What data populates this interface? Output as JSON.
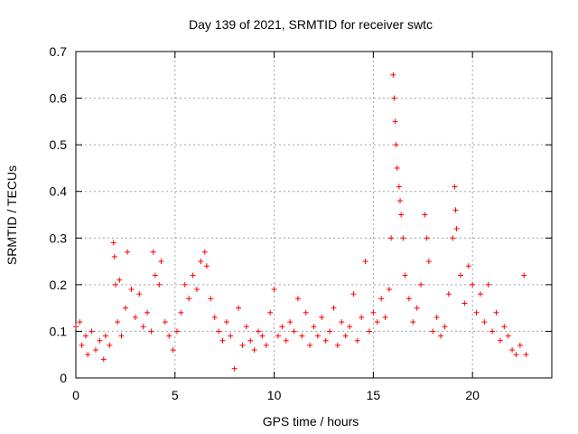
{
  "chart_data": {
    "type": "scatter",
    "title": "Day 139 of 2021, SRMTID for receiver swtc",
    "xlabel": "GPS time / hours",
    "ylabel": "SRMTID / TECUs",
    "xlim": [
      0,
      24
    ],
    "ylim": [
      0,
      0.7
    ],
    "xticks": [
      0,
      5,
      10,
      15,
      20
    ],
    "xtick_labels": [
      "0",
      "5",
      "10",
      "15",
      "20"
    ],
    "yticks": [
      0,
      0.1,
      0.2,
      0.3,
      0.4,
      0.5,
      0.6,
      0.7
    ],
    "ytick_labels": [
      "0",
      "0.1",
      "0.2",
      "0.3",
      "0.4",
      "0.5",
      "0.6",
      "0.7"
    ],
    "grid": true,
    "marker": "+",
    "marker_color": "#ff0000",
    "series": [
      {
        "name": "SRMTID",
        "points": [
          [
            0.0,
            0.11
          ],
          [
            0.2,
            0.12
          ],
          [
            0.3,
            0.07
          ],
          [
            0.5,
            0.09
          ],
          [
            0.6,
            0.05
          ],
          [
            0.8,
            0.1
          ],
          [
            1.0,
            0.06
          ],
          [
            1.2,
            0.08
          ],
          [
            1.4,
            0.04
          ],
          [
            1.5,
            0.09
          ],
          [
            1.7,
            0.07
          ],
          [
            1.9,
            0.29
          ],
          [
            1.95,
            0.26
          ],
          [
            2.0,
            0.2
          ],
          [
            2.1,
            0.12
          ],
          [
            2.2,
            0.21
          ],
          [
            2.3,
            0.09
          ],
          [
            2.5,
            0.15
          ],
          [
            2.6,
            0.27
          ],
          [
            2.8,
            0.19
          ],
          [
            3.0,
            0.13
          ],
          [
            3.2,
            0.18
          ],
          [
            3.4,
            0.11
          ],
          [
            3.6,
            0.14
          ],
          [
            3.8,
            0.1
          ],
          [
            3.9,
            0.27
          ],
          [
            4.0,
            0.22
          ],
          [
            4.2,
            0.2
          ],
          [
            4.3,
            0.25
          ],
          [
            4.5,
            0.12
          ],
          [
            4.7,
            0.09
          ],
          [
            4.9,
            0.06
          ],
          [
            5.1,
            0.1
          ],
          [
            5.3,
            0.14
          ],
          [
            5.5,
            0.2
          ],
          [
            5.7,
            0.17
          ],
          [
            5.9,
            0.22
          ],
          [
            6.1,
            0.19
          ],
          [
            6.3,
            0.25
          ],
          [
            6.5,
            0.27
          ],
          [
            6.6,
            0.24
          ],
          [
            6.8,
            0.17
          ],
          [
            7.0,
            0.13
          ],
          [
            7.2,
            0.1
          ],
          [
            7.4,
            0.08
          ],
          [
            7.6,
            0.12
          ],
          [
            7.8,
            0.09
          ],
          [
            8.0,
            0.02
          ],
          [
            8.2,
            0.15
          ],
          [
            8.4,
            0.07
          ],
          [
            8.6,
            0.11
          ],
          [
            8.8,
            0.08
          ],
          [
            9.0,
            0.06
          ],
          [
            9.2,
            0.1
          ],
          [
            9.4,
            0.09
          ],
          [
            9.6,
            0.07
          ],
          [
            9.8,
            0.14
          ],
          [
            10.0,
            0.19
          ],
          [
            10.2,
            0.09
          ],
          [
            10.4,
            0.11
          ],
          [
            10.6,
            0.08
          ],
          [
            10.8,
            0.12
          ],
          [
            11.0,
            0.1
          ],
          [
            11.2,
            0.17
          ],
          [
            11.4,
            0.09
          ],
          [
            11.6,
            0.14
          ],
          [
            11.8,
            0.07
          ],
          [
            12.0,
            0.11
          ],
          [
            12.2,
            0.09
          ],
          [
            12.4,
            0.13
          ],
          [
            12.6,
            0.08
          ],
          [
            12.8,
            0.1
          ],
          [
            13.0,
            0.15
          ],
          [
            13.2,
            0.07
          ],
          [
            13.4,
            0.12
          ],
          [
            13.6,
            0.09
          ],
          [
            13.8,
            0.11
          ],
          [
            14.0,
            0.18
          ],
          [
            14.2,
            0.08
          ],
          [
            14.4,
            0.13
          ],
          [
            14.6,
            0.25
          ],
          [
            14.8,
            0.1
          ],
          [
            15.0,
            0.14
          ],
          [
            15.2,
            0.12
          ],
          [
            15.4,
            0.17
          ],
          [
            15.6,
            0.13
          ],
          [
            15.8,
            0.19
          ],
          [
            15.9,
            0.3
          ],
          [
            16.0,
            0.65
          ],
          [
            16.05,
            0.6
          ],
          [
            16.1,
            0.55
          ],
          [
            16.15,
            0.5
          ],
          [
            16.2,
            0.45
          ],
          [
            16.3,
            0.41
          ],
          [
            16.35,
            0.38
          ],
          [
            16.4,
            0.35
          ],
          [
            16.5,
            0.3
          ],
          [
            16.6,
            0.22
          ],
          [
            16.8,
            0.17
          ],
          [
            17.0,
            0.12
          ],
          [
            17.2,
            0.15
          ],
          [
            17.4,
            0.2
          ],
          [
            17.6,
            0.35
          ],
          [
            17.7,
            0.3
          ],
          [
            17.8,
            0.25
          ],
          [
            18.0,
            0.1
          ],
          [
            18.2,
            0.13
          ],
          [
            18.4,
            0.09
          ],
          [
            18.6,
            0.11
          ],
          [
            18.8,
            0.18
          ],
          [
            19.0,
            0.3
          ],
          [
            19.1,
            0.41
          ],
          [
            19.15,
            0.36
          ],
          [
            19.2,
            0.32
          ],
          [
            19.4,
            0.22
          ],
          [
            19.6,
            0.16
          ],
          [
            19.8,
            0.24
          ],
          [
            20.0,
            0.2
          ],
          [
            20.2,
            0.14
          ],
          [
            20.4,
            0.18
          ],
          [
            20.6,
            0.12
          ],
          [
            20.8,
            0.2
          ],
          [
            21.0,
            0.1
          ],
          [
            21.2,
            0.14
          ],
          [
            21.4,
            0.08
          ],
          [
            21.6,
            0.11
          ],
          [
            21.8,
            0.09
          ],
          [
            22.0,
            0.06
          ],
          [
            22.2,
            0.05
          ],
          [
            22.4,
            0.07
          ],
          [
            22.6,
            0.22
          ],
          [
            22.7,
            0.05
          ]
        ]
      }
    ]
  }
}
